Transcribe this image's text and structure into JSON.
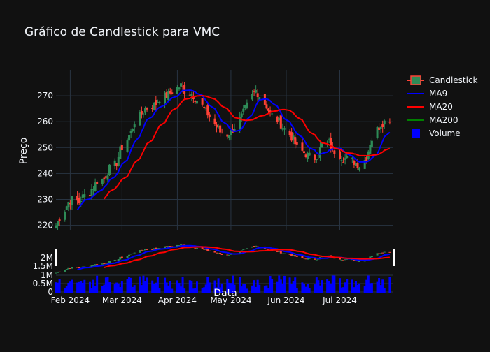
{
  "chart_data": {
    "type": "candlestick",
    "title": "Gráfico de Candlestick para VMC",
    "ylabel": "Preço",
    "xlabel": "Data",
    "ylim": [
      218,
      280
    ],
    "yticks": [
      220,
      230,
      240,
      250,
      260,
      270
    ],
    "volume_ticks": [
      "0",
      "0.5M",
      "1M",
      "1.5M",
      "2M"
    ],
    "x_ticks": [
      {
        "label": "Feb 2024",
        "date": "2024-02-01"
      },
      {
        "label": "Mar 2024",
        "date": "2024-03-01"
      },
      {
        "label": "Apr 2024",
        "date": "2024-04-01"
      },
      {
        "label": "May 2024",
        "date": "2024-05-01"
      },
      {
        "label": "Jun 2024",
        "date": "2024-06-01"
      },
      {
        "label": "Jul 2024",
        "date": "2024-07-01"
      }
    ],
    "legend": {
      "placement": "top-right",
      "entries": [
        "Candlestick",
        "MA9",
        "MA20",
        "MA200",
        "Volume"
      ]
    },
    "colors": {
      "increasing": "#2e8b57",
      "decreasing": "#ff4136",
      "ma9": "#0000ff",
      "ma20": "#ff0000",
      "ma200": "#008000",
      "volume": "#0000ff",
      "grid": "#283442",
      "background": "#111111"
    },
    "daily_closes": [
      [
        "2024-01-24",
        220
      ],
      [
        "2024-01-26",
        223
      ],
      [
        "2024-01-29",
        226
      ],
      [
        "2024-01-31",
        229
      ],
      [
        "2024-02-02",
        230
      ],
      [
        "2024-02-06",
        229
      ],
      [
        "2024-02-08",
        231
      ],
      [
        "2024-02-12",
        233
      ],
      [
        "2024-02-14",
        235
      ],
      [
        "2024-02-16",
        237
      ],
      [
        "2024-02-20",
        238
      ],
      [
        "2024-02-23",
        242
      ],
      [
        "2024-02-27",
        244
      ],
      [
        "2024-02-29",
        249
      ],
      [
        "2024-03-04",
        253
      ],
      [
        "2024-03-06",
        256
      ],
      [
        "2024-03-08",
        260
      ],
      [
        "2024-03-12",
        263
      ],
      [
        "2024-03-14",
        265
      ],
      [
        "2024-03-18",
        266
      ],
      [
        "2024-03-20",
        267
      ],
      [
        "2024-03-22",
        269
      ],
      [
        "2024-03-26",
        270
      ],
      [
        "2024-03-28",
        271
      ],
      [
        "2024-04-01",
        273
      ],
      [
        "2024-04-03",
        274
      ],
      [
        "2024-04-05",
        272
      ],
      [
        "2024-04-09",
        271
      ],
      [
        "2024-04-11",
        269
      ],
      [
        "2024-04-15",
        266
      ],
      [
        "2024-04-17",
        264
      ],
      [
        "2024-04-19",
        262
      ],
      [
        "2024-04-23",
        258
      ],
      [
        "2024-04-25",
        256
      ],
      [
        "2024-04-29",
        255
      ],
      [
        "2024-05-01",
        256
      ],
      [
        "2024-05-03",
        258
      ],
      [
        "2024-05-07",
        262
      ],
      [
        "2024-05-09",
        265
      ],
      [
        "2024-05-13",
        270
      ],
      [
        "2024-05-15",
        272
      ],
      [
        "2024-05-17",
        270
      ],
      [
        "2024-05-21",
        266
      ],
      [
        "2024-05-23",
        263
      ],
      [
        "2024-05-28",
        260
      ],
      [
        "2024-05-30",
        258
      ],
      [
        "2024-06-03",
        255
      ],
      [
        "2024-06-05",
        253
      ],
      [
        "2024-06-07",
        250
      ],
      [
        "2024-06-11",
        248
      ],
      [
        "2024-06-13",
        247
      ],
      [
        "2024-06-17",
        246
      ],
      [
        "2024-06-19",
        248
      ],
      [
        "2024-06-21",
        251
      ],
      [
        "2024-06-25",
        252
      ],
      [
        "2024-06-27",
        249
      ],
      [
        "2024-07-01",
        247
      ],
      [
        "2024-07-03",
        246
      ],
      [
        "2024-07-08",
        245
      ],
      [
        "2024-07-10",
        244
      ],
      [
        "2024-07-12",
        243
      ],
      [
        "2024-07-16",
        246
      ],
      [
        "2024-07-18",
        252
      ],
      [
        "2024-07-22",
        257
      ],
      [
        "2024-07-24",
        259
      ],
      [
        "2024-07-26",
        260
      ],
      [
        "2024-07-29",
        261
      ]
    ]
  }
}
